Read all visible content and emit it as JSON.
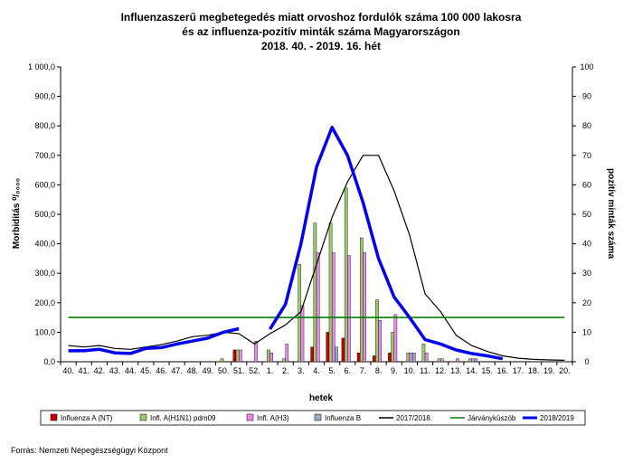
{
  "chart_data": {
    "type": "bar",
    "title": [
      "Influenzaszerű megbetegedés miatt orvoshoz fordulók száma 100 000 lakosra",
      "és az influenza-pozitív minták száma Magyarországon",
      "2018. 40. - 2019. 16. hét"
    ],
    "xlabel": "hetek",
    "ylabel_left": "Morbiditás ⁰/₀₀₀₀",
    "ylabel_right": "pozitív minták száma",
    "ylim_left": [
      0,
      1000
    ],
    "ylim_right": [
      0,
      100
    ],
    "yticks_left": [
      "0,0",
      "100,0",
      "200,0",
      "300,0",
      "400,0",
      "500,0",
      "600,0",
      "700,0",
      "800,0",
      "900,0",
      "1 000,0"
    ],
    "yticks_right": [
      "0",
      "10",
      "20",
      "30",
      "40",
      "50",
      "60",
      "70",
      "80",
      "90",
      "100"
    ],
    "categories": [
      "40.",
      "41.",
      "42.",
      "43.",
      "44.",
      "45.",
      "46.",
      "47.",
      "48.",
      "49.",
      "50.",
      "51.",
      "52.",
      "1.",
      "2.",
      "3.",
      "4.",
      "5.",
      "6.",
      "7.",
      "8.",
      "9.",
      "10.",
      "11.",
      "12.",
      "13.",
      "14.",
      "15.",
      "16.",
      "17.",
      "18.",
      "19.",
      "20."
    ],
    "bar_series": [
      {
        "name": "Influenza A (NT)",
        "color": "#cc0000",
        "values": [
          0,
          0,
          0,
          0,
          0,
          0,
          0,
          0,
          0,
          0,
          0,
          4,
          0,
          0,
          0,
          0,
          5,
          10,
          8,
          3,
          2,
          3,
          0,
          0,
          0,
          0,
          0,
          0,
          0,
          0,
          0,
          0,
          0
        ]
      },
      {
        "name": "Infl. A(H1N1) pdm09",
        "color": "#99cc66",
        "values": [
          0,
          0,
          0,
          0,
          0,
          0,
          0,
          0,
          0,
          0,
          1,
          4,
          0,
          4,
          1,
          33,
          47,
          47,
          59,
          42,
          21,
          10,
          3,
          6,
          1,
          0,
          1,
          0,
          0,
          0,
          0,
          0,
          0
        ]
      },
      {
        "name": "Infl. A(H3)",
        "color": "#ee88ee",
        "values": [
          0,
          0,
          0,
          0,
          0,
          0,
          0,
          0,
          0,
          0,
          0,
          4,
          7,
          3,
          6,
          19,
          37,
          37,
          36,
          37,
          14,
          16,
          3,
          3,
          1,
          1,
          1,
          0,
          0,
          0,
          0,
          0,
          0
        ]
      },
      {
        "name": "Influenza B",
        "color": "#99aacc",
        "values": [
          0,
          0,
          0,
          0,
          0,
          0,
          0,
          0,
          0,
          0,
          0,
          0,
          0,
          0,
          0,
          0,
          0,
          5,
          0,
          0,
          0,
          0,
          3,
          0,
          0,
          0,
          1,
          0,
          0,
          0,
          0,
          0,
          0
        ]
      }
    ],
    "line_series": [
      {
        "name": "2017/2018.",
        "color": "#000000",
        "values": [
          55,
          50,
          55,
          45,
          42,
          50,
          58,
          70,
          85,
          90,
          100,
          95,
          60,
          95,
          125,
          170,
          330,
          490,
          610,
          700,
          700,
          580,
          430,
          230,
          170,
          90,
          55,
          35,
          20,
          12,
          8,
          6,
          5
        ]
      },
      {
        "name": "Járványküszöb",
        "color": "#008000",
        "values": [
          150,
          150,
          150,
          150,
          150,
          150,
          150,
          150,
          150,
          150,
          150,
          150,
          150,
          150,
          150,
          150,
          150,
          150,
          150,
          150,
          150,
          150,
          150,
          150,
          150,
          150,
          150,
          150,
          150,
          150,
          150,
          150,
          150
        ]
      },
      {
        "name": "2018/2019",
        "color": "#0000ee",
        "values": [
          37,
          37,
          42,
          30,
          28,
          45,
          48,
          60,
          70,
          80,
          100,
          112,
          null,
          110,
          195,
          400,
          660,
          795,
          700,
          540,
          350,
          220,
          150,
          75,
          60,
          40,
          28,
          20,
          10,
          null,
          null,
          null,
          null
        ]
      }
    ],
    "legend": [
      "Influenza A (NT)",
      "Infl. A(H1N1) pdm09",
      "Infl. A(H3)",
      "Influenza B",
      "2017/2018.",
      "Járványküszöb",
      "2018/2019"
    ],
    "legend_position": "bottom",
    "grid": false
  },
  "source": "Forrás: Nemzeti Népegészségügyi Központ"
}
